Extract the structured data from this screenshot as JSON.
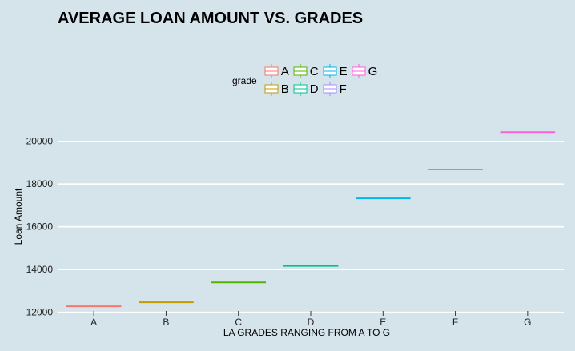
{
  "chart_data": {
    "type": "boxplot",
    "title": "AVERAGE LOAN AMOUNT VS. GRADES",
    "xlabel": "LA GRADES RANGING FROM A TO G",
    "ylabel": "Loan Amount",
    "categories": [
      "A",
      "B",
      "C",
      "D",
      "E",
      "F",
      "G"
    ],
    "values": [
      12280,
      12470,
      13400,
      14170,
      17330,
      18680,
      20430
    ],
    "colors": [
      "#f8766d",
      "#c49a00",
      "#53b400",
      "#00c094",
      "#00b6eb",
      "#a58aff",
      "#fb61d7"
    ],
    "ylim": [
      11950,
      21000
    ],
    "yticks": [
      12000,
      14000,
      16000,
      18000,
      20000
    ],
    "ytick_labels": [
      "12000",
      "14000",
      "16000",
      "18000",
      "20000"
    ],
    "grid": true,
    "legend": {
      "title": "grade",
      "position": "top",
      "entries": [
        "A",
        "B",
        "C",
        "D",
        "E",
        "F",
        "G"
      ]
    }
  }
}
